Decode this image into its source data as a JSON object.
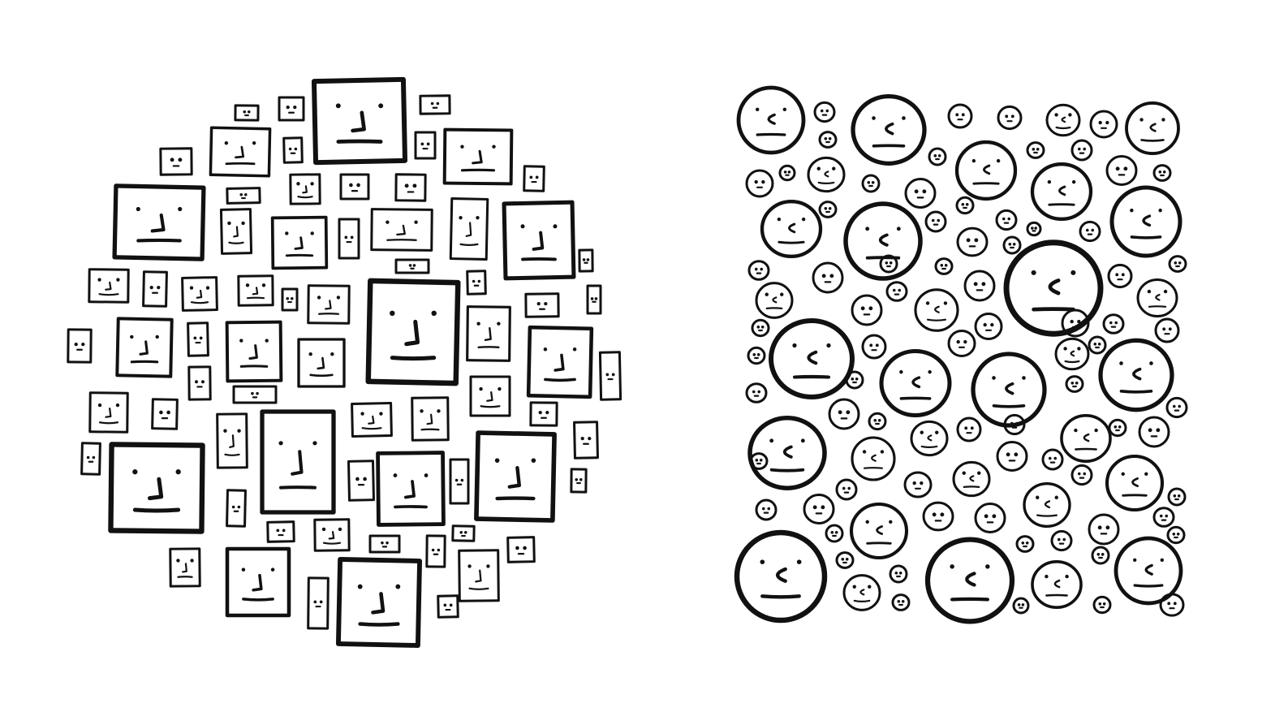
{
  "drawing": {
    "ink_color": "#111111",
    "paper_color": "#ffffff",
    "left_cluster": {
      "face_shape": "square",
      "overall_outline": "circle"
    },
    "right_cluster": {
      "face_shape": "circle",
      "overall_outline": "rectangle"
    }
  }
}
